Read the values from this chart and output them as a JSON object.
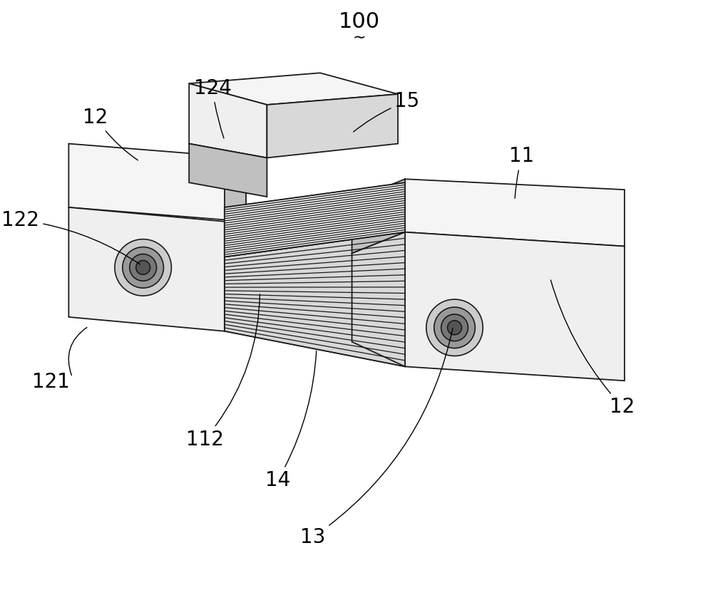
{
  "bg": "#ffffff",
  "lc": "#1a1a1a",
  "c_light": "#efefef",
  "c_mid": "#d8d8d8",
  "c_dark": "#c0c0c0",
  "c_top": "#f5f5f5",
  "c_side": "#e0e0e0",
  "figsize": [
    10.0,
    8.56
  ],
  "dpi": 100
}
